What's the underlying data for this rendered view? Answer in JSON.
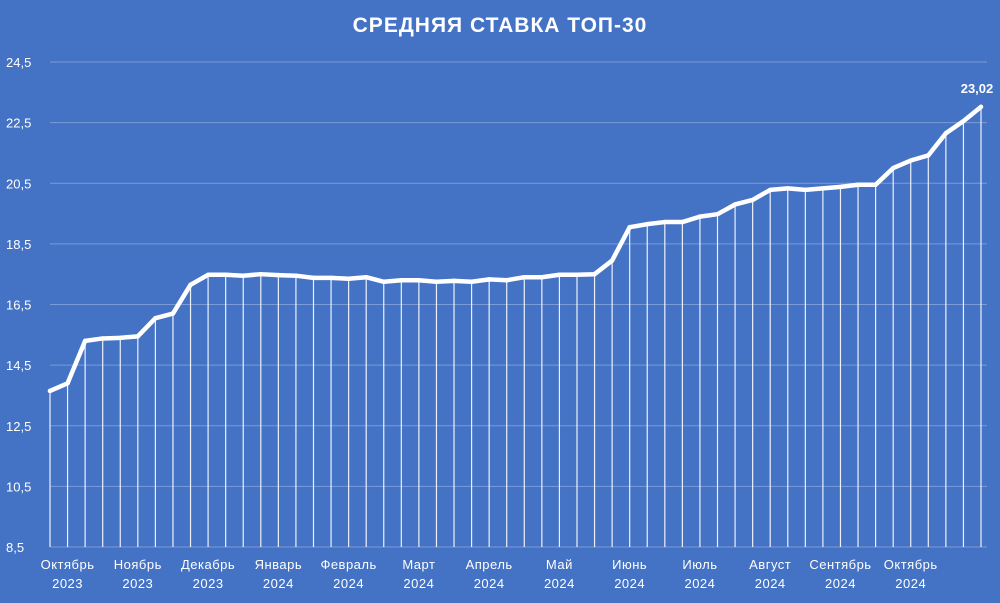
{
  "chart_data": {
    "type": "line",
    "title": "СРЕДНЯЯ СТАВКА ТОП-30",
    "xlabel": "",
    "ylabel": "",
    "ylim": [
      8.5,
      24.5
    ],
    "yticks": [
      "8,5",
      "10,5",
      "12,5",
      "14,5",
      "16,5",
      "18,5",
      "20,5",
      "22,5",
      "24,5"
    ],
    "grid": true,
    "drop_lines": true,
    "month_labels": [
      {
        "month": "Октябрь",
        "year": "2023",
        "index": 1
      },
      {
        "month": "Ноябрь",
        "year": "2023",
        "index": 5
      },
      {
        "month": "Декабрь",
        "year": "2023",
        "index": 9
      },
      {
        "month": "Январь",
        "year": "2024",
        "index": 13
      },
      {
        "month": "Февраль",
        "year": "2024",
        "index": 17
      },
      {
        "month": "Март",
        "year": "2024",
        "index": 21
      },
      {
        "month": "Апрель",
        "year": "2024",
        "index": 25
      },
      {
        "month": "Май",
        "year": "2024",
        "index": 29
      },
      {
        "month": "Июнь",
        "year": "2024",
        "index": 33
      },
      {
        "month": "Июль",
        "year": "2024",
        "index": 37
      },
      {
        "month": "Август",
        "year": "2024",
        "index": 41
      },
      {
        "month": "Сентябрь",
        "year": "2024",
        "index": 45
      },
      {
        "month": "Октябрь",
        "year": "2024",
        "index": 49
      }
    ],
    "series": [
      {
        "values": [
          13.65,
          13.9,
          15.3,
          15.38,
          15.4,
          15.45,
          16.05,
          16.2,
          17.15,
          17.48,
          17.48,
          17.45,
          17.5,
          17.47,
          17.45,
          17.38,
          17.38,
          17.35,
          17.4,
          17.25,
          17.3,
          17.3,
          17.25,
          17.28,
          17.25,
          17.33,
          17.3,
          17.4,
          17.4,
          17.48,
          17.48,
          17.5,
          17.95,
          19.05,
          19.15,
          19.22,
          19.22,
          19.4,
          19.48,
          19.8,
          19.95,
          20.28,
          20.33,
          20.28,
          20.33,
          20.38,
          20.45,
          20.45,
          21.0,
          21.25,
          21.42,
          22.15,
          22.55,
          23.02
        ]
      }
    ],
    "data_labels": [
      {
        "index": 53,
        "text": "23,02"
      }
    ],
    "colors": {
      "background": "#4472c4",
      "line": "#ffffff",
      "grid": "#7a9bd8"
    }
  }
}
